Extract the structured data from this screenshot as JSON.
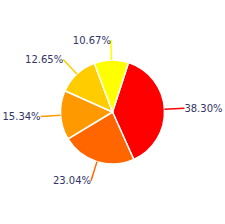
{
  "chart_data": {
    "type": "pie",
    "values": [
      38.3,
      23.04,
      15.34,
      12.65,
      10.67
    ],
    "value_labels": [
      "38.30%",
      "23.04%",
      "15.34%",
      "12.65%",
      "10.67%"
    ],
    "colors": [
      "#ff0000",
      "#ff6600",
      "#ff9900",
      "#ffcc00",
      "#ffff00"
    ],
    "data_labels": true
  }
}
